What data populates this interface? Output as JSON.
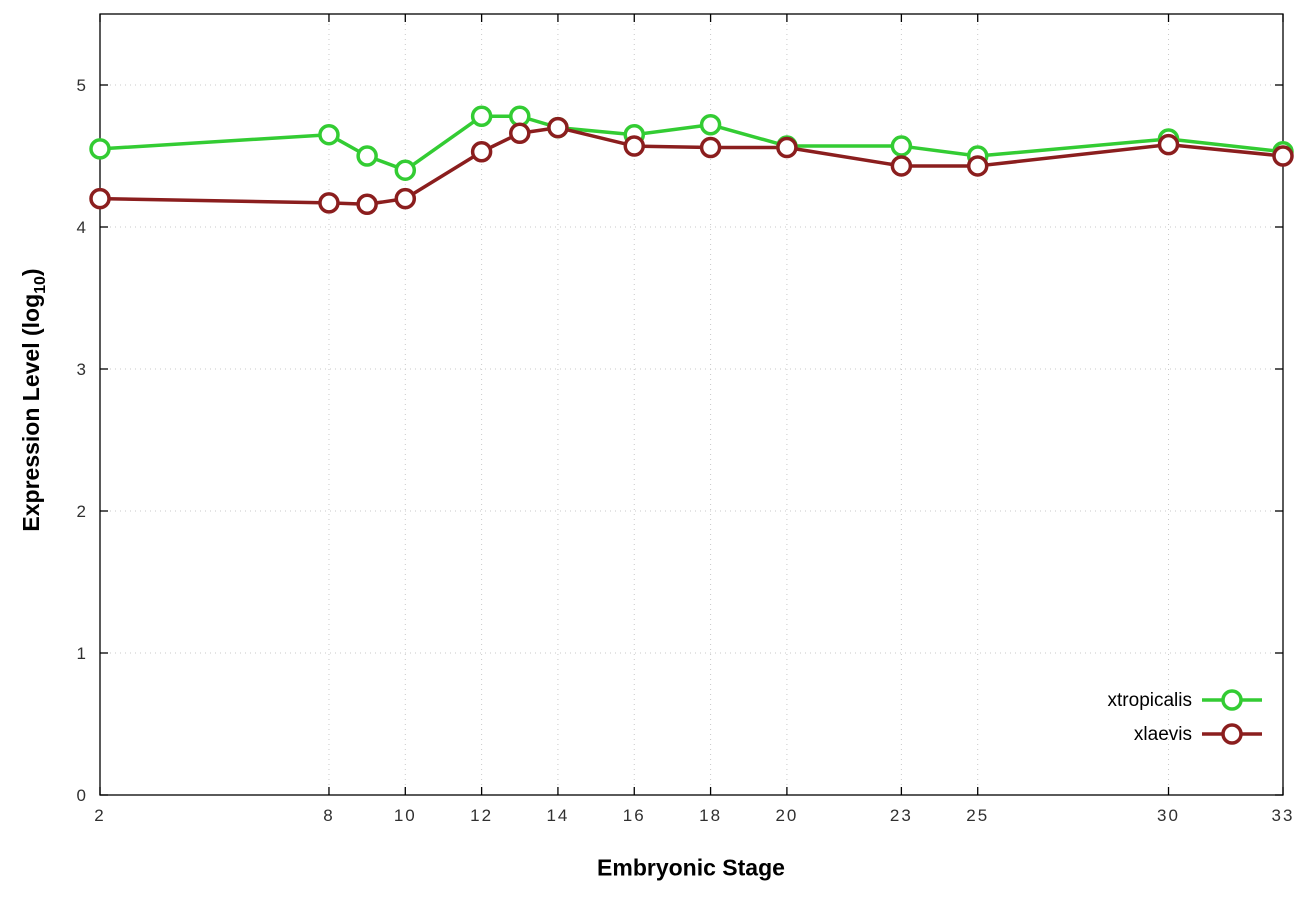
{
  "chart_data": {
    "type": "line",
    "title": "",
    "xlabel": "Embryonic Stage",
    "ylabel": "Expression Level (log10)",
    "ylabel_parts": {
      "main": "Expression Level (log",
      "sub": "10",
      "end": ")"
    },
    "x": [
      2,
      8,
      9,
      10,
      12,
      13,
      14,
      16,
      18,
      20,
      23,
      25,
      30,
      33
    ],
    "xticks": [
      2,
      8,
      10,
      12,
      14,
      16,
      18,
      20,
      23,
      25,
      30,
      33
    ],
    "yticks": [
      0,
      1,
      2,
      3,
      4,
      5
    ],
    "xlim": [
      2,
      33
    ],
    "ylim": [
      0,
      5.5
    ],
    "grid": true,
    "legend_position": "bottom-right-inside",
    "series": [
      {
        "name": "xtropicalis",
        "color": "#33cc33",
        "values": [
          4.55,
          4.65,
          4.5,
          4.4,
          4.78,
          4.78,
          4.7,
          4.65,
          4.72,
          4.57,
          4.57,
          4.5,
          4.62,
          4.53
        ]
      },
      {
        "name": "xlaevis",
        "color": "#8b1e1e",
        "values": [
          4.2,
          4.17,
          4.16,
          4.2,
          4.53,
          4.66,
          4.7,
          4.57,
          4.56,
          4.56,
          4.43,
          4.43,
          4.58,
          4.5
        ]
      }
    ],
    "style": {
      "grid_color": "#c9c9c9",
      "frame_color": "#000000",
      "tick_text_color": "#303030",
      "marker_fill": "#ffffff",
      "line_width": 3.5,
      "marker_radius": 9
    }
  }
}
